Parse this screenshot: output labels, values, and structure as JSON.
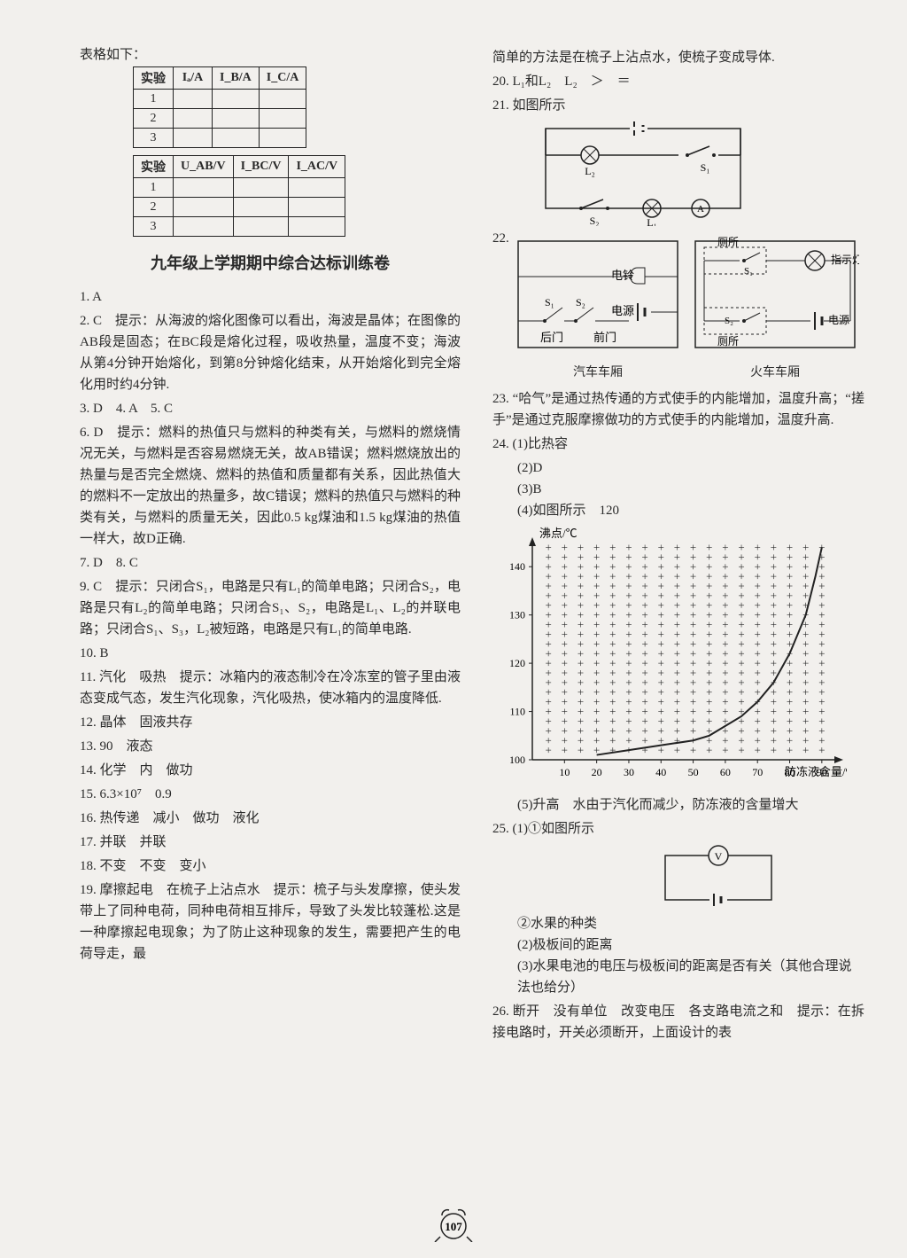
{
  "left": {
    "table_intro": "表格如下：",
    "table1": {
      "headers": [
        "实验",
        "Iₐ/A",
        "I_B/A",
        "I_C/A"
      ],
      "rows": [
        "1",
        "2",
        "3"
      ]
    },
    "table2": {
      "headers": [
        "实验",
        "U_AB/V",
        "I_BC/V",
        "I_AC/V"
      ],
      "rows": [
        "1",
        "2",
        "3"
      ]
    },
    "heading": "九年级上学期期中综合达标训练卷",
    "q1": "1. A",
    "q2": "2. C　提示：从海波的熔化图像可以看出，海波是晶体；在图像的AB段是固态；在BC段是熔化过程，吸收热量，温度不变；海波从第4分钟开始熔化，到第8分钟熔化结束，从开始熔化到完全熔化用时约4分钟.",
    "q3": "3. D　4. A　5. C",
    "q6": "6. D　提示：燃料的热值只与燃料的种类有关，与燃料的燃烧情况无关，与燃料是否容易燃烧无关，故AB错误；燃料燃烧放出的热量与是否完全燃烧、燃料的热值和质量都有关系，因此热值大的燃料不一定放出的热量多，故C错误；燃料的热值只与燃料的种类有关，与燃料的质量无关，因此0.5 kg煤油和1.5 kg煤油的热值一样大，故D正确.",
    "q7": "7. D　8. C",
    "q9": "9. C　提示：只闭合S₁，电路是只有L₁的简单电路；只闭合S₂，电路是只有L₂的简单电路；只闭合S₁、S₂，电路是L₁、L₂的并联电路；只闭合S₁、S₃，L₂被短路，电路是只有L₁的简单电路.",
    "q10": "10. B",
    "q11": "11. 汽化　吸热　提示：冰箱内的液态制冷在冷冻室的管子里由液态变成气态，发生汽化现象，汽化吸热，使冰箱内的温度降低.",
    "q12": "12. 晶体　固液共存",
    "q13": "13. 90　液态",
    "q14": "14. 化学　内　做功",
    "q15": "15. 6.3×10⁷　0.9",
    "q16": "16. 热传递　减小　做功　液化",
    "q17": "17. 并联　并联",
    "q18": "18. 不变　不变　变小",
    "q19": "19. 摩擦起电　在梳子上沾点水　提示：梳子与头发摩擦，使头发带上了同种电荷，同种电荷相互排斥，导致了头发比较蓬松.这是一种摩擦起电现象；为了防止这种现象的发生，需要把产生的电荷导走，最"
  },
  "right": {
    "top": "简单的方法是在梳子上沾点水，使梳子变成导体.",
    "q20": "20. L₁和L₂　L₂　＞　＝",
    "q21": "21. 如图所示",
    "q22_label": "22.",
    "circuit21": {
      "labels": {
        "L1": "L₁",
        "L2": "L₂",
        "S1": "S₁",
        "S2": "S₂",
        "A": "A"
      }
    },
    "box_car": {
      "title": "汽车车厢",
      "bell": "电铃",
      "power": "电源",
      "S1": "S₁",
      "S2": "S₂",
      "back": "后门",
      "front": "前门"
    },
    "box_train": {
      "title": "火车车厢",
      "wc": "厕所",
      "lamp": "指示灯",
      "S1": "S₁",
      "S2": "S₂",
      "power": "电源"
    },
    "q23": "23. “哈气”是通过热传通的方式使手的内能增加，温度升高；“搓手”是通过克服摩擦做功的方式使手的内能增加，温度升高.",
    "q24_1": "24. (1)比热容",
    "q24_2": "(2)D",
    "q24_3": "(3)B",
    "q24_4": "(4)如图所示　120",
    "chart": {
      "ylabel": "沸点/℃",
      "xlabel": "防冻液含量/%",
      "xticks": [
        10,
        20,
        30,
        40,
        50,
        60,
        70,
        80,
        90
      ],
      "yticks": [
        100,
        110,
        120,
        130,
        140
      ],
      "ylim": [
        100,
        145
      ],
      "xlim": [
        0,
        95
      ],
      "points": [
        [
          20,
          101
        ],
        [
          30,
          102
        ],
        [
          40,
          103
        ],
        [
          50,
          104
        ],
        [
          55,
          105
        ],
        [
          60,
          107
        ],
        [
          65,
          109
        ],
        [
          70,
          112
        ],
        [
          75,
          116
        ],
        [
          80,
          122
        ],
        [
          85,
          130
        ],
        [
          88,
          138
        ],
        [
          90,
          144
        ]
      ],
      "line_color": "#222222",
      "grid_color": "#222222",
      "bg": "#f2f0ed"
    },
    "q24_5": "(5)升高　水由于汽化而减少，防冻液的含量增大",
    "q25_1": "25. (1)①如图所示",
    "circuit25": {
      "V": "V"
    },
    "q25_1b": "②水果的种类",
    "q25_2": "(2)极板间的距离",
    "q25_3": "(3)水果电池的电压与极板间的距离是否有关（其他合理说法也给分）",
    "q26": "26. 断开　没有单位　改变电压　各支路电流之和　提示：在拆接电路时，开关必须断开，上面设计的表"
  },
  "page_number": "107"
}
